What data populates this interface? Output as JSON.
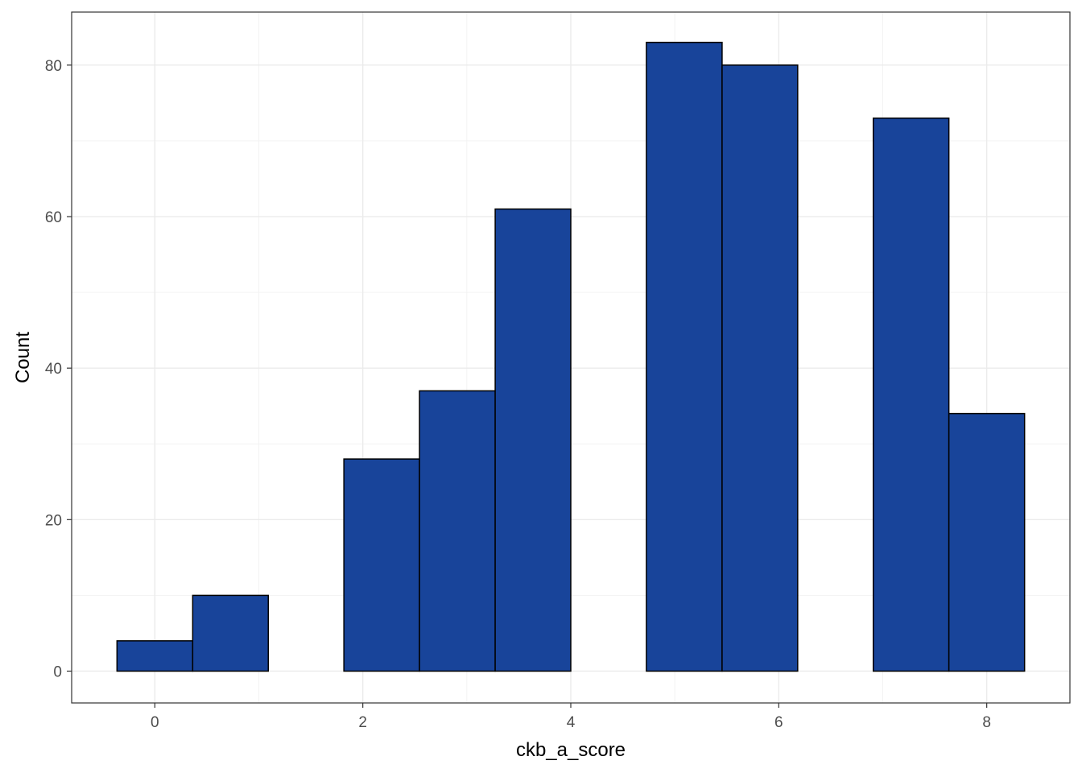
{
  "chart_data": {
    "type": "bar",
    "subtype": "histogram",
    "xlabel": "ckb_a_score",
    "ylabel": "Count",
    "xlim": [
      -0.8,
      8.8
    ],
    "ylim": [
      -4.2,
      87
    ],
    "x_ticks": [
      0,
      2,
      4,
      6,
      8
    ],
    "y_ticks": [
      0,
      20,
      40,
      60,
      80
    ],
    "bin_width": 0.727,
    "bins": [
      {
        "x_start": -0.364,
        "x_end": 0.364,
        "count": 4
      },
      {
        "x_start": 0.364,
        "x_end": 1.091,
        "count": 10
      },
      {
        "x_start": 1.091,
        "x_end": 1.818,
        "count": 0
      },
      {
        "x_start": 1.818,
        "x_end": 2.545,
        "count": 28
      },
      {
        "x_start": 2.545,
        "x_end": 3.273,
        "count": 37
      },
      {
        "x_start": 3.273,
        "x_end": 4.0,
        "count": 61
      },
      {
        "x_start": 4.0,
        "x_end": 4.727,
        "count": 0
      },
      {
        "x_start": 4.727,
        "x_end": 5.455,
        "count": 83
      },
      {
        "x_start": 5.455,
        "x_end": 6.182,
        "count": 80
      },
      {
        "x_start": 6.182,
        "x_end": 6.909,
        "count": 0
      },
      {
        "x_start": 6.909,
        "x_end": 7.636,
        "count": 73
      },
      {
        "x_start": 7.636,
        "x_end": 8.364,
        "count": 34
      }
    ],
    "grid": true,
    "colors": {
      "bar_fill": "#18449A",
      "bar_stroke": "#000000",
      "grid_major": "#EBEBEB",
      "grid_minor": "#F3F3F3",
      "panel_border": "#333333"
    }
  }
}
